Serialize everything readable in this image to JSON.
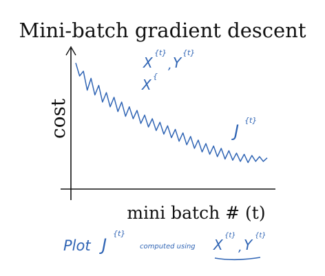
{
  "chart_data": {
    "type": "line",
    "title": "Mini-batch gradient descent",
    "xlabel": "mini batch # (t)",
    "ylabel": "cost",
    "grid": false,
    "legend": "none",
    "trend": "noisy, generally decreasing cost per mini-batch",
    "series": [
      {
        "color": "#2f64b4",
        "x": [
          0,
          0.02,
          0.04,
          0.06,
          0.08,
          0.1,
          0.12,
          0.14,
          0.16,
          0.18,
          0.2,
          0.22,
          0.24,
          0.26,
          0.28,
          0.3,
          0.32,
          0.34,
          0.36,
          0.38,
          0.4,
          0.42,
          0.44,
          0.46,
          0.48,
          0.5,
          0.52,
          0.54,
          0.56,
          0.58,
          0.6,
          0.62,
          0.64,
          0.66,
          0.68,
          0.7,
          0.72,
          0.74,
          0.76,
          0.78,
          0.8,
          0.82,
          0.84,
          0.86,
          0.88,
          0.9,
          0.92,
          0.94,
          0.96,
          0.98,
          1.0
        ],
        "values": [
          0.97,
          0.86,
          0.9,
          0.74,
          0.84,
          0.7,
          0.78,
          0.64,
          0.72,
          0.6,
          0.68,
          0.56,
          0.64,
          0.52,
          0.6,
          0.5,
          0.57,
          0.46,
          0.53,
          0.43,
          0.5,
          0.4,
          0.47,
          0.37,
          0.44,
          0.34,
          0.41,
          0.31,
          0.38,
          0.28,
          0.35,
          0.25,
          0.32,
          0.22,
          0.29,
          0.2,
          0.27,
          0.18,
          0.25,
          0.16,
          0.23,
          0.15,
          0.21,
          0.14,
          0.2,
          0.13,
          0.19,
          0.14,
          0.18,
          0.14,
          0.17
        ]
      }
    ]
  },
  "annotations": {
    "x_batch": "X",
    "x_batch_sup": "{t}",
    "comma": ",",
    "y_batch": "Y",
    "y_batch_sup": "{t}",
    "x_partial": "X",
    "x_partial_sup": "{",
    "j_symbol": "J",
    "j_sup": "{t}",
    "plot_word": "Plot",
    "plot_j": "J",
    "plot_j_sup": "{t}",
    "computed_using": "computed using",
    "plot_x": "X",
    "plot_x_sup": "{t}",
    "plot_comma": ",",
    "plot_y": "Y",
    "plot_y_sup": "{t}"
  },
  "colors": {
    "ink": "#2f64b4",
    "axis": "#111111",
    "background": "#ffffff"
  }
}
